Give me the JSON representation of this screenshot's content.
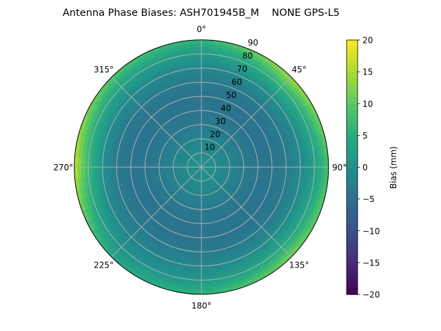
{
  "chart_data": {
    "type": "heatmap",
    "projection": "polar",
    "title": "Antenna Phase Biases: ASH701945B_M    NONE GPS-L5",
    "theta_direction": "clockwise",
    "theta_zero": "north",
    "theta_ticks": [
      "0°",
      "45°",
      "90°",
      "135°",
      "180°",
      "225°",
      "270°",
      "315°"
    ],
    "theta_tick_values": [
      0,
      45,
      90,
      135,
      180,
      225,
      270,
      315
    ],
    "r_ticks": [
      "10",
      "20",
      "30",
      "40",
      "50",
      "60",
      "70",
      "80",
      "90"
    ],
    "r_tick_values": [
      10,
      20,
      30,
      40,
      50,
      60,
      70,
      80,
      90
    ],
    "rlim": [
      0,
      90
    ],
    "grid": true,
    "colormap": "viridis",
    "colorbar": {
      "label": "Bias (mm)",
      "range": [
        -20,
        20
      ],
      "ticks": [
        "20",
        "15",
        "10",
        "5",
        "0",
        "−5",
        "−10",
        "−15",
        "−20"
      ],
      "tick_values": [
        20,
        15,
        10,
        5,
        0,
        -5,
        -10,
        -15,
        -20
      ]
    },
    "radial_profile": {
      "r": [
        0,
        10,
        20,
        30,
        40,
        50,
        60,
        70,
        80,
        85,
        90
      ],
      "bias": [
        0,
        -0.5,
        -2,
        -3.5,
        -4.5,
        -4.5,
        -3.5,
        -1.5,
        1.5,
        3.5,
        6
      ]
    },
    "edge_bias_by_azimuth": {
      "azimuth": [
        0,
        45,
        90,
        135,
        180,
        225,
        270,
        315,
        360
      ],
      "bias": [
        6,
        15,
        8,
        12,
        6,
        4,
        17,
        9,
        6
      ]
    }
  }
}
